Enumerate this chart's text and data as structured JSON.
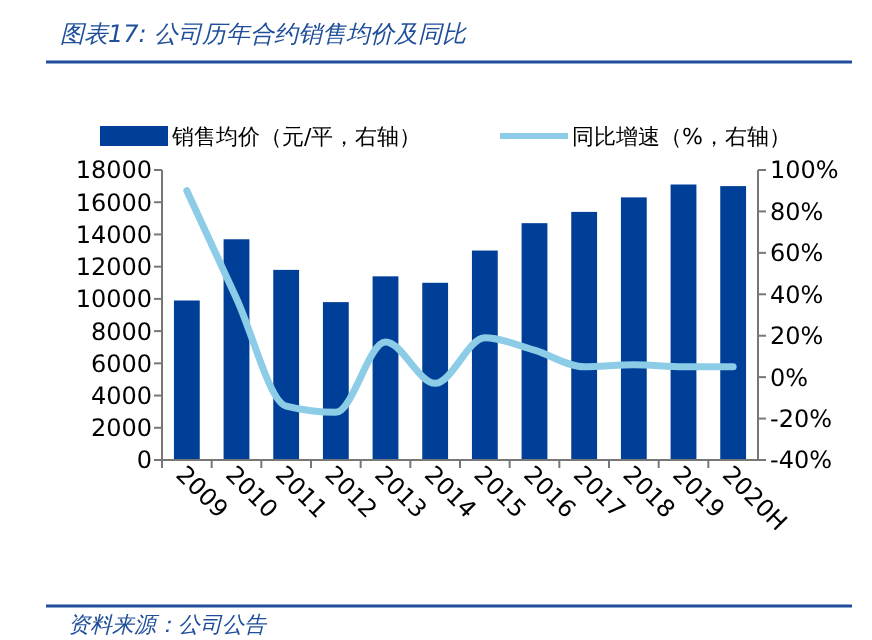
{
  "chart_data": {
    "type": "bar",
    "title": "图表17: 公司历年合约销售均价及同比",
    "categories": [
      "2009",
      "2010",
      "2011",
      "2012",
      "2013",
      "2014",
      "2015",
      "2016",
      "2017",
      "2018",
      "2019",
      "2020H"
    ],
    "series": [
      {
        "name": "销售均价（元/平，右轴）",
        "color": "#003f97",
        "values": [
          9900,
          13700,
          11800,
          9800,
          11400,
          11000,
          13000,
          14700,
          15400,
          16300,
          17100,
          17000
        ]
      },
      {
        "name": "同比增速（%，右轴）",
        "type": "line",
        "axis": "y2",
        "color": "#8ccce6",
        "values": [
          90,
          38,
          -14,
          -17,
          17,
          -3,
          19,
          13,
          5,
          6,
          5,
          5
        ]
      }
    ],
    "ylim": [
      0,
      18000
    ],
    "yticks": [
      0,
      2000,
      4000,
      6000,
      8000,
      10000,
      12000,
      14000,
      16000,
      18000
    ],
    "y2lim": [
      -40,
      100
    ],
    "y2ticks": [
      {
        "value": -40,
        "label": "-40%"
      },
      {
        "value": -20,
        "label": "-20%"
      },
      {
        "value": 0,
        "label": "0%"
      },
      {
        "value": 20,
        "label": "20%"
      },
      {
        "value": 40,
        "label": "40%"
      },
      {
        "value": 60,
        "label": "60%"
      },
      {
        "value": 80,
        "label": "80%"
      },
      {
        "value": 100,
        "label": "100%"
      }
    ],
    "legend": "top",
    "grid": false,
    "line_style": "solid",
    "marker": "none",
    "annotations": [
      "资料来源：公司公告"
    ]
  }
}
